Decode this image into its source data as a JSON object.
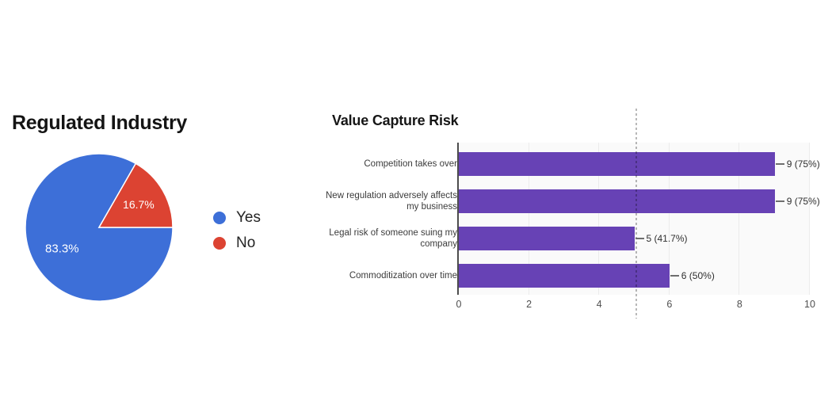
{
  "pie_section": {
    "title": "Regulated Industry",
    "legend": [
      {
        "label": "Yes",
        "color": "#3d6fd8"
      },
      {
        "label": "No",
        "color": "#dc4332"
      }
    ]
  },
  "bar_section": {
    "title": "Value Capture Risk"
  },
  "chart_data": [
    {
      "type": "pie",
      "title": "Regulated Industry",
      "labels": [
        "Yes",
        "No"
      ],
      "values": [
        83.3,
        16.7
      ],
      "value_labels": [
        "83.3%",
        "16.7%"
      ],
      "colors": [
        "#3d6fd8",
        "#dc4332"
      ],
      "start_deg": 90,
      "legend_position": "right",
      "slice_label_color": "#ffffff"
    },
    {
      "type": "bar",
      "title": "Value Capture Risk",
      "orientation": "horizontal",
      "categories": [
        "Competition takes over",
        "New regulation adversely affects\nmy business",
        "Legal risk of someone suing my\ncompany",
        "Commoditization over time"
      ],
      "values": [
        9,
        9,
        5,
        6
      ],
      "value_labels": [
        "9 (75%)",
        "9 (75%)",
        "5 (41.7%)",
        "6 (50%)"
      ],
      "xlim": [
        0,
        10
      ],
      "xticks": [
        0,
        2,
        4,
        6,
        8,
        10
      ],
      "grid": true,
      "bar_color": "#6742b5",
      "reference_line_x": 5.03,
      "legend_position": "none"
    }
  ]
}
